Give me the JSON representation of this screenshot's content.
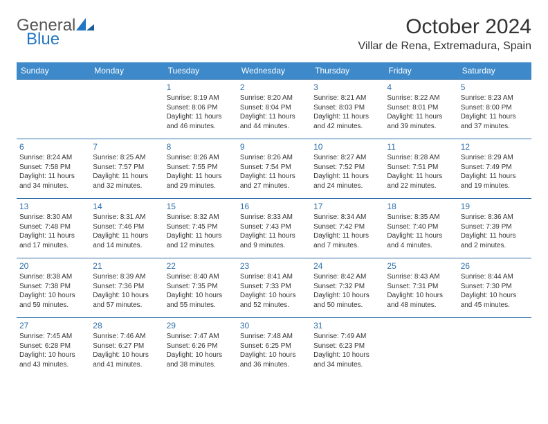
{
  "logo": {
    "word1": "General",
    "word2": "Blue",
    "color_blue": "#2276c3",
    "color_grey": "#555555"
  },
  "title": "October 2024",
  "subtitle": "Villar de Rena, Extremadura, Spain",
  "header_bg": "#3d89ca",
  "rule_color": "#2e6fa8",
  "dayname_color": "#ffffff",
  "daynum_color": "#2e6fa8",
  "text_color": "#333333",
  "background_color": "#ffffff",
  "font_sizes": {
    "title": 30,
    "subtitle": 16,
    "day_header": 12,
    "day_num": 12,
    "body": 10
  },
  "day_names": [
    "Sunday",
    "Monday",
    "Tuesday",
    "Wednesday",
    "Thursday",
    "Friday",
    "Saturday"
  ],
  "weeks": [
    [
      null,
      null,
      {
        "n": "1",
        "sr": "Sunrise: 8:19 AM",
        "ss": "Sunset: 8:06 PM",
        "dl1": "Daylight: 11 hours",
        "dl2": "and 46 minutes."
      },
      {
        "n": "2",
        "sr": "Sunrise: 8:20 AM",
        "ss": "Sunset: 8:04 PM",
        "dl1": "Daylight: 11 hours",
        "dl2": "and 44 minutes."
      },
      {
        "n": "3",
        "sr": "Sunrise: 8:21 AM",
        "ss": "Sunset: 8:03 PM",
        "dl1": "Daylight: 11 hours",
        "dl2": "and 42 minutes."
      },
      {
        "n": "4",
        "sr": "Sunrise: 8:22 AM",
        "ss": "Sunset: 8:01 PM",
        "dl1": "Daylight: 11 hours",
        "dl2": "and 39 minutes."
      },
      {
        "n": "5",
        "sr": "Sunrise: 8:23 AM",
        "ss": "Sunset: 8:00 PM",
        "dl1": "Daylight: 11 hours",
        "dl2": "and 37 minutes."
      }
    ],
    [
      {
        "n": "6",
        "sr": "Sunrise: 8:24 AM",
        "ss": "Sunset: 7:58 PM",
        "dl1": "Daylight: 11 hours",
        "dl2": "and 34 minutes."
      },
      {
        "n": "7",
        "sr": "Sunrise: 8:25 AM",
        "ss": "Sunset: 7:57 PM",
        "dl1": "Daylight: 11 hours",
        "dl2": "and 32 minutes."
      },
      {
        "n": "8",
        "sr": "Sunrise: 8:26 AM",
        "ss": "Sunset: 7:55 PM",
        "dl1": "Daylight: 11 hours",
        "dl2": "and 29 minutes."
      },
      {
        "n": "9",
        "sr": "Sunrise: 8:26 AM",
        "ss": "Sunset: 7:54 PM",
        "dl1": "Daylight: 11 hours",
        "dl2": "and 27 minutes."
      },
      {
        "n": "10",
        "sr": "Sunrise: 8:27 AM",
        "ss": "Sunset: 7:52 PM",
        "dl1": "Daylight: 11 hours",
        "dl2": "and 24 minutes."
      },
      {
        "n": "11",
        "sr": "Sunrise: 8:28 AM",
        "ss": "Sunset: 7:51 PM",
        "dl1": "Daylight: 11 hours",
        "dl2": "and 22 minutes."
      },
      {
        "n": "12",
        "sr": "Sunrise: 8:29 AM",
        "ss": "Sunset: 7:49 PM",
        "dl1": "Daylight: 11 hours",
        "dl2": "and 19 minutes."
      }
    ],
    [
      {
        "n": "13",
        "sr": "Sunrise: 8:30 AM",
        "ss": "Sunset: 7:48 PM",
        "dl1": "Daylight: 11 hours",
        "dl2": "and 17 minutes."
      },
      {
        "n": "14",
        "sr": "Sunrise: 8:31 AM",
        "ss": "Sunset: 7:46 PM",
        "dl1": "Daylight: 11 hours",
        "dl2": "and 14 minutes."
      },
      {
        "n": "15",
        "sr": "Sunrise: 8:32 AM",
        "ss": "Sunset: 7:45 PM",
        "dl1": "Daylight: 11 hours",
        "dl2": "and 12 minutes."
      },
      {
        "n": "16",
        "sr": "Sunrise: 8:33 AM",
        "ss": "Sunset: 7:43 PM",
        "dl1": "Daylight: 11 hours",
        "dl2": "and 9 minutes."
      },
      {
        "n": "17",
        "sr": "Sunrise: 8:34 AM",
        "ss": "Sunset: 7:42 PM",
        "dl1": "Daylight: 11 hours",
        "dl2": "and 7 minutes."
      },
      {
        "n": "18",
        "sr": "Sunrise: 8:35 AM",
        "ss": "Sunset: 7:40 PM",
        "dl1": "Daylight: 11 hours",
        "dl2": "and 4 minutes."
      },
      {
        "n": "19",
        "sr": "Sunrise: 8:36 AM",
        "ss": "Sunset: 7:39 PM",
        "dl1": "Daylight: 11 hours",
        "dl2": "and 2 minutes."
      }
    ],
    [
      {
        "n": "20",
        "sr": "Sunrise: 8:38 AM",
        "ss": "Sunset: 7:38 PM",
        "dl1": "Daylight: 10 hours",
        "dl2": "and 59 minutes."
      },
      {
        "n": "21",
        "sr": "Sunrise: 8:39 AM",
        "ss": "Sunset: 7:36 PM",
        "dl1": "Daylight: 10 hours",
        "dl2": "and 57 minutes."
      },
      {
        "n": "22",
        "sr": "Sunrise: 8:40 AM",
        "ss": "Sunset: 7:35 PM",
        "dl1": "Daylight: 10 hours",
        "dl2": "and 55 minutes."
      },
      {
        "n": "23",
        "sr": "Sunrise: 8:41 AM",
        "ss": "Sunset: 7:33 PM",
        "dl1": "Daylight: 10 hours",
        "dl2": "and 52 minutes."
      },
      {
        "n": "24",
        "sr": "Sunrise: 8:42 AM",
        "ss": "Sunset: 7:32 PM",
        "dl1": "Daylight: 10 hours",
        "dl2": "and 50 minutes."
      },
      {
        "n": "25",
        "sr": "Sunrise: 8:43 AM",
        "ss": "Sunset: 7:31 PM",
        "dl1": "Daylight: 10 hours",
        "dl2": "and 48 minutes."
      },
      {
        "n": "26",
        "sr": "Sunrise: 8:44 AM",
        "ss": "Sunset: 7:30 PM",
        "dl1": "Daylight: 10 hours",
        "dl2": "and 45 minutes."
      }
    ],
    [
      {
        "n": "27",
        "sr": "Sunrise: 7:45 AM",
        "ss": "Sunset: 6:28 PM",
        "dl1": "Daylight: 10 hours",
        "dl2": "and 43 minutes."
      },
      {
        "n": "28",
        "sr": "Sunrise: 7:46 AM",
        "ss": "Sunset: 6:27 PM",
        "dl1": "Daylight: 10 hours",
        "dl2": "and 41 minutes."
      },
      {
        "n": "29",
        "sr": "Sunrise: 7:47 AM",
        "ss": "Sunset: 6:26 PM",
        "dl1": "Daylight: 10 hours",
        "dl2": "and 38 minutes."
      },
      {
        "n": "30",
        "sr": "Sunrise: 7:48 AM",
        "ss": "Sunset: 6:25 PM",
        "dl1": "Daylight: 10 hours",
        "dl2": "and 36 minutes."
      },
      {
        "n": "31",
        "sr": "Sunrise: 7:49 AM",
        "ss": "Sunset: 6:23 PM",
        "dl1": "Daylight: 10 hours",
        "dl2": "and 34 minutes."
      },
      null,
      null
    ]
  ]
}
